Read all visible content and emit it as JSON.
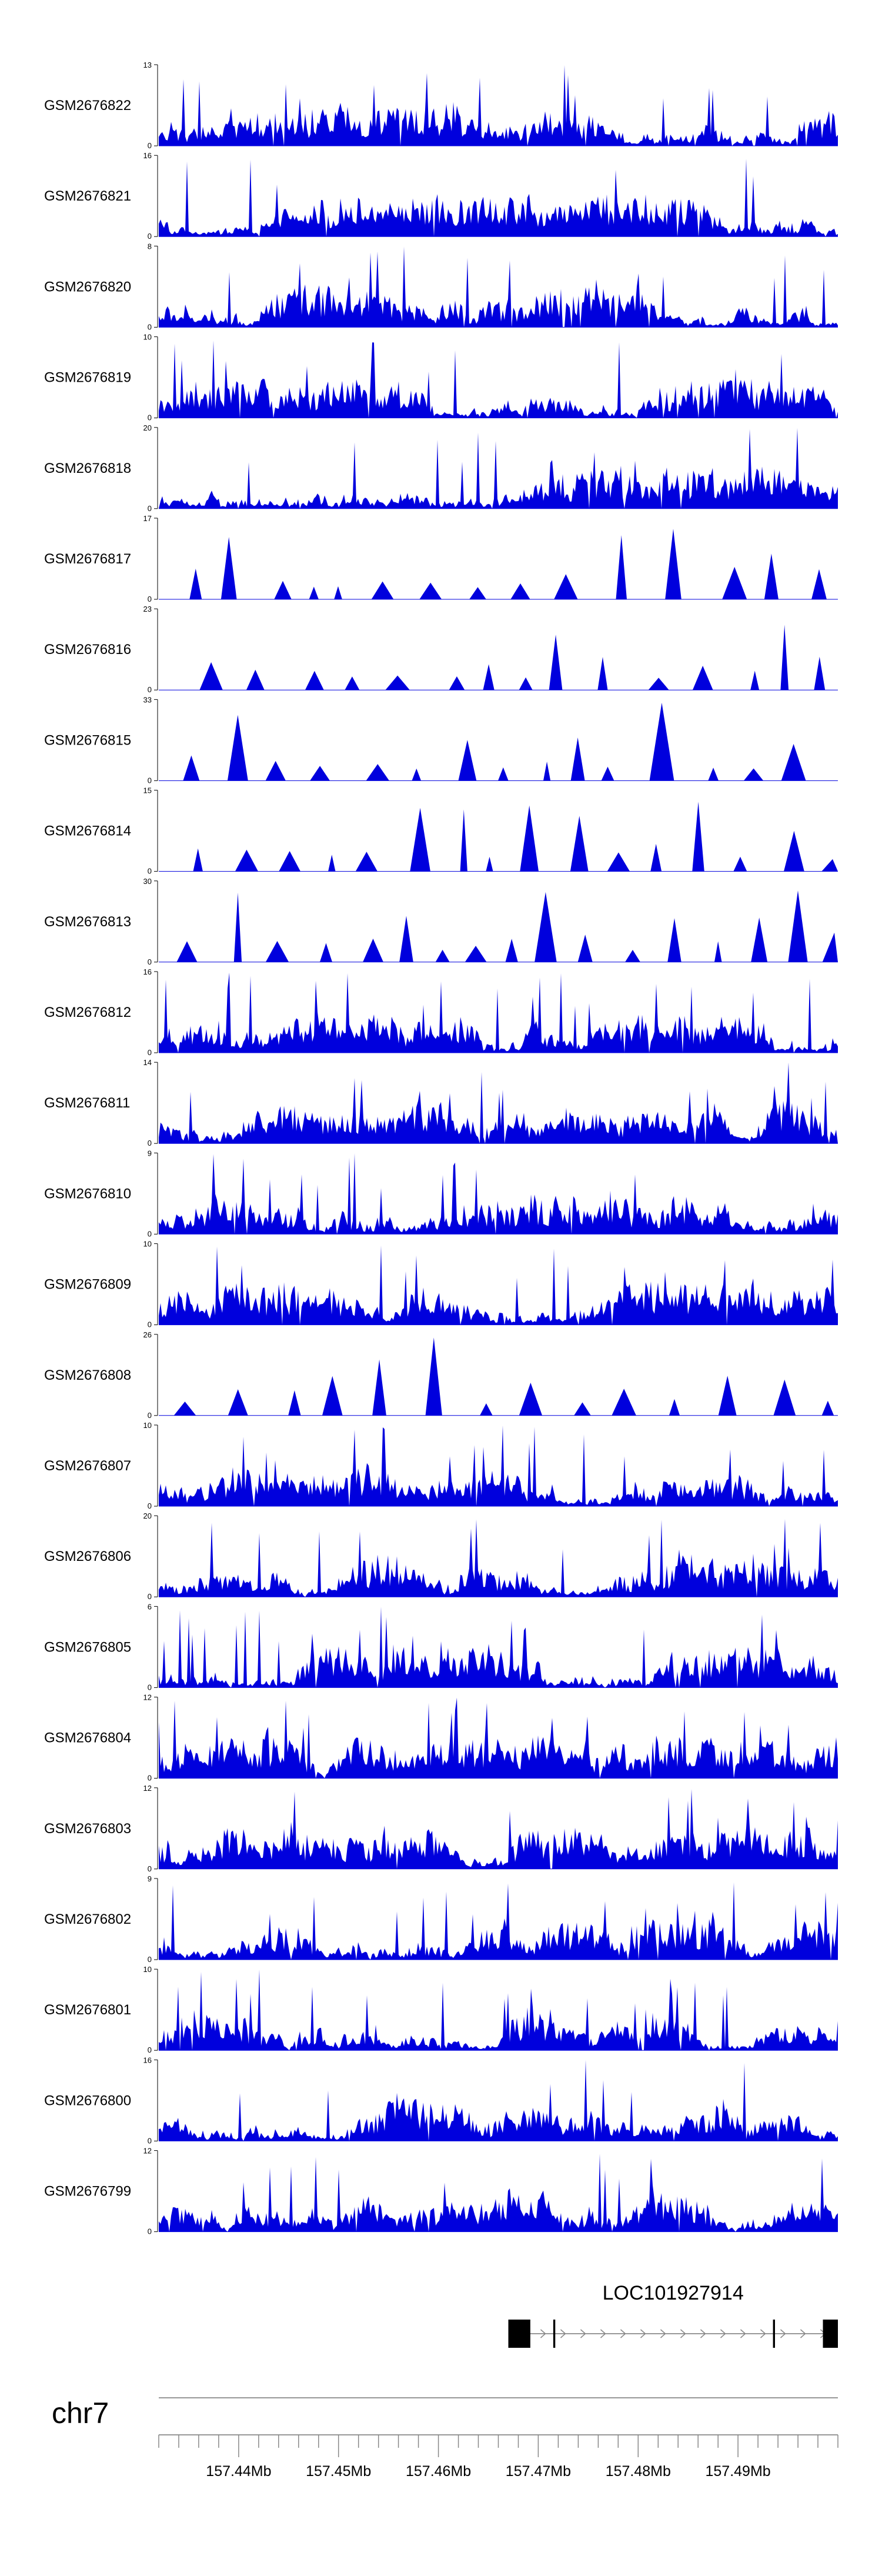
{
  "chart_data": {
    "type": "area",
    "title": "",
    "series_color": "#0000dd",
    "tracks": [
      {
        "name": "GSM2676822",
        "ymax": 13,
        "ymin": 0
      },
      {
        "name": "GSM2676821",
        "ymax": 16,
        "ymin": 0
      },
      {
        "name": "GSM2676820",
        "ymax": 8,
        "ymin": 0
      },
      {
        "name": "GSM2676819",
        "ymax": 10,
        "ymin": 0
      },
      {
        "name": "GSM2676818",
        "ymax": 20,
        "ymin": 0
      },
      {
        "name": "GSM2676817",
        "ymax": 17,
        "ymin": 0
      },
      {
        "name": "GSM2676816",
        "ymax": 23,
        "ymin": 0
      },
      {
        "name": "GSM2676815",
        "ymax": 33,
        "ymin": 0
      },
      {
        "name": "GSM2676814",
        "ymax": 15,
        "ymin": 0
      },
      {
        "name": "GSM2676813",
        "ymax": 30,
        "ymin": 0
      },
      {
        "name": "GSM2676812",
        "ymax": 16,
        "ymin": 0
      },
      {
        "name": "GSM2676811",
        "ymax": 14,
        "ymin": 0
      },
      {
        "name": "GSM2676810",
        "ymax": 9,
        "ymin": 0
      },
      {
        "name": "GSM2676809",
        "ymax": 10,
        "ymin": 0
      },
      {
        "name": "GSM2676808",
        "ymax": 26,
        "ymin": 0
      },
      {
        "name": "GSM2676807",
        "ymax": 10,
        "ymin": 0
      },
      {
        "name": "GSM2676806",
        "ymax": 20,
        "ymin": 0
      },
      {
        "name": "GSM2676805",
        "ymax": 6,
        "ymin": 0
      },
      {
        "name": "GSM2676804",
        "ymax": 12,
        "ymin": 0
      },
      {
        "name": "GSM2676803",
        "ymax": 12,
        "ymin": 0
      },
      {
        "name": "GSM2676802",
        "ymax": 9,
        "ymin": 0
      },
      {
        "name": "GSM2676801",
        "ymax": 10,
        "ymin": 0
      },
      {
        "name": "GSM2676800",
        "ymax": 16,
        "ymin": 0
      },
      {
        "name": "GSM2676799",
        "ymax": 12,
        "ymin": 0
      }
    ],
    "gene": {
      "name": "LOC101927914",
      "start_mb": 157.467,
      "end_mb": 157.5,
      "exons_mb": [
        [
          157.467,
          157.4692
        ],
        [
          157.4715,
          157.4717
        ],
        [
          157.4935,
          157.4937
        ],
        [
          157.4985,
          157.5
        ]
      ],
      "strand": "+"
    },
    "chromosome": "chr7",
    "xrange_mb": [
      157.432,
      157.5
    ],
    "major_ticks_mb": [
      157.44,
      157.45,
      157.46,
      157.47,
      157.48,
      157.49
    ],
    "tick_labels": [
      "157.44Mb",
      "157.45Mb",
      "157.46Mb",
      "157.47Mb",
      "157.48Mb",
      "157.49Mb"
    ],
    "minor_tick_step_mb": 0.002
  }
}
